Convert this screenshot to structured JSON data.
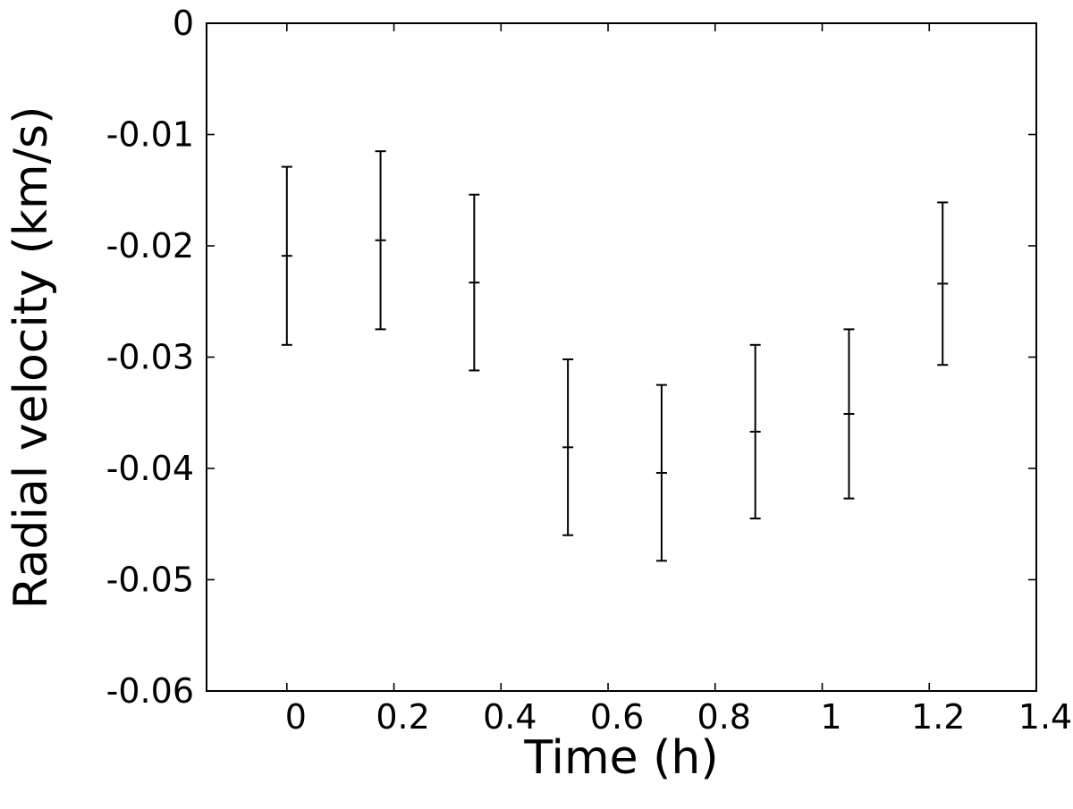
{
  "chart_data": {
    "type": "scatter",
    "title": "",
    "xlabel": "Time (h)",
    "ylabel": "Radial velocity (km/s)",
    "xlim": [
      -0.15,
      1.4
    ],
    "ylim": [
      -0.06,
      0
    ],
    "xticks": [
      0,
      0.2,
      0.4,
      0.6,
      0.8,
      1,
      1.2,
      1.4
    ],
    "xtick_labels": [
      "0",
      "0.2",
      "0.4",
      "0.6",
      "0.8",
      "1",
      "1.2",
      "1.4"
    ],
    "yticks": [
      0,
      -0.01,
      -0.02,
      -0.03,
      -0.04,
      -0.05,
      -0.06
    ],
    "ytick_labels": [
      "0",
      "-0.01",
      "-0.02",
      "-0.03",
      "-0.04",
      "-0.05",
      "-0.06"
    ],
    "grid": false,
    "marker_color": "#000000",
    "series": [
      {
        "x": [
          0,
          0.175,
          0.35,
          0.525,
          0.7,
          0.875,
          1.05,
          1.225
        ],
        "y": [
          -0.0209,
          -0.0195,
          -0.0233,
          -0.0381,
          -0.0404,
          -0.0367,
          -0.0351,
          -0.0234
        ],
        "yerr": [
          0.008,
          0.008,
          0.0079,
          0.0079,
          0.0079,
          0.0078,
          0.0076,
          0.0073
        ]
      }
    ]
  }
}
